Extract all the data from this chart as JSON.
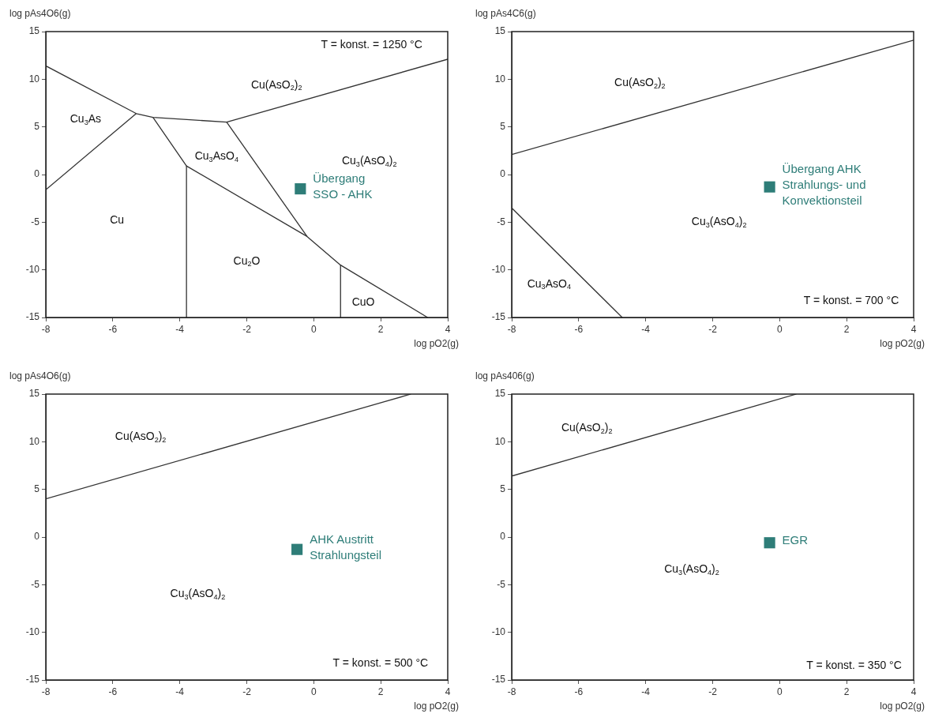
{
  "chart_data": [
    {
      "type": "line",
      "xlabel": "log pO2(g)",
      "ylabel": "log pAs4O6(g)",
      "xlim": [
        -8,
        4
      ],
      "ylim": [
        -15,
        15
      ],
      "xticks": [
        -8,
        -6,
        -4,
        -2,
        0,
        2,
        4
      ],
      "yticks": [
        -15,
        -10,
        -5,
        0,
        5,
        10,
        15
      ],
      "grid": false,
      "legend": false,
      "marker": "none",
      "series": [
        {
          "color": "#333333",
          "x": [
            -8,
            -5.3,
            -4.8,
            -2.6,
            4
          ],
          "values": [
            11.4,
            6.4,
            6.0,
            5.5,
            12.1
          ]
        },
        {
          "color": "#333333",
          "x": [
            -8,
            -5.3
          ],
          "values": [
            -1.6,
            6.4
          ]
        },
        {
          "color": "#333333",
          "x": [
            -4.8,
            -3.8,
            -0.2,
            0.8,
            3.4
          ],
          "values": [
            6.0,
            0.9,
            -6.5,
            -9.5,
            -15
          ]
        },
        {
          "color": "#333333",
          "x": [
            -3.8,
            -3.8
          ],
          "values": [
            0.9,
            -15
          ]
        },
        {
          "color": "#333333",
          "x": [
            -2.6,
            -0.2
          ],
          "values": [
            5.5,
            -6.5
          ]
        },
        {
          "color": "#333333",
          "x": [
            0.8,
            0.8
          ],
          "values": [
            -9.5,
            -15
          ]
        },
        {
          "type": "scatter",
          "marker": "square",
          "name": "Übergang\nSSO - AHK",
          "color": "#2e7d78",
          "x": [
            -0.4
          ],
          "values": [
            -1.5
          ]
        }
      ],
      "annotations": [
        "T = konst. = 1250 °C",
        "Cu(AsO$_{2}$)$_{2}$",
        "Cu$_{3}$As",
        "Cu$_{3}$AsO$_{4}$",
        "Cu$_{3}$(AsO$_{4}$)$_{2}$",
        "Cu",
        "Cu$_{2}$O",
        "CuO"
      ]
    },
    {
      "type": "line",
      "xlabel": "log pO2(g)",
      "ylabel": "log pAs4C6(g)",
      "xlim": [
        -8,
        4
      ],
      "ylim": [
        -15,
        15
      ],
      "xticks": [
        -8,
        -6,
        -4,
        -2,
        0,
        2,
        4
      ],
      "yticks": [
        -15,
        -10,
        -5,
        0,
        5,
        10,
        15
      ],
      "grid": false,
      "legend": false,
      "marker": "none",
      "series": [
        {
          "color": "#333333",
          "x": [
            -8,
            4
          ],
          "values": [
            2.1,
            14.1
          ]
        },
        {
          "color": "#333333",
          "x": [
            -8,
            -4.7
          ],
          "values": [
            -3.5,
            -15
          ]
        },
        {
          "type": "scatter",
          "marker": "square",
          "name": "Übergang AHK\nStrahlungs- und\nKonvektionsteil",
          "color": "#2e7d78",
          "x": [
            -0.3
          ],
          "values": [
            -1.3
          ]
        }
      ],
      "annotations": [
        "Cu(AsO$_{2}$)$_{2}$",
        "Cu$_{3}$(AsO$_{4}$)$_{2}$",
        "Cu$_{3}$AsO$_{4}$",
        "T = konst. = 700 °C"
      ]
    },
    {
      "type": "line",
      "xlabel": "log pO2(g)",
      "ylabel": "log pAs4O6(g)",
      "xlim": [
        -8,
        4
      ],
      "ylim": [
        -15,
        15
      ],
      "xticks": [
        -8,
        -6,
        -4,
        -2,
        0,
        2,
        4
      ],
      "yticks": [
        -15,
        -10,
        -5,
        0,
        5,
        10,
        15
      ],
      "grid": false,
      "legend": false,
      "marker": "none",
      "series": [
        {
          "color": "#333333",
          "x": [
            -8,
            2.9
          ],
          "values": [
            4.0,
            15
          ]
        },
        {
          "type": "scatter",
          "marker": "square",
          "name": "AHK Austritt\nStrahlungsteil",
          "color": "#2e7d78",
          "x": [
            -0.5
          ],
          "values": [
            -1.3
          ]
        }
      ],
      "annotations": [
        "Cu(AsO$_{2}$)$_{2}$",
        "Cu$_{3}$(AsO$_{4}$)$_{2}$",
        "T = konst. = 500 °C"
      ]
    },
    {
      "type": "line",
      "xlabel": "log pO2(g)",
      "ylabel": "log pAs406(g)",
      "xlim": [
        -8,
        4
      ],
      "ylim": [
        -15,
        15
      ],
      "xticks": [
        -8,
        -6,
        -4,
        -2,
        0,
        2,
        4
      ],
      "yticks": [
        -15,
        -10,
        -5,
        0,
        5,
        10,
        15
      ],
      "grid": false,
      "legend": false,
      "marker": "none",
      "series": [
        {
          "color": "#333333",
          "x": [
            -8,
            0.5
          ],
          "values": [
            6.4,
            15
          ]
        },
        {
          "type": "scatter",
          "marker": "square",
          "name": "EGR",
          "color": "#2e7d78",
          "x": [
            -0.3
          ],
          "values": [
            -0.6
          ]
        }
      ],
      "annotations": [
        "Cu(AsO$_{2}$)$_{2}$",
        "Cu$_{3}$(AsO$_{4}$)$_{2}$",
        "T = konst. = 350 °C"
      ]
    }
  ]
}
